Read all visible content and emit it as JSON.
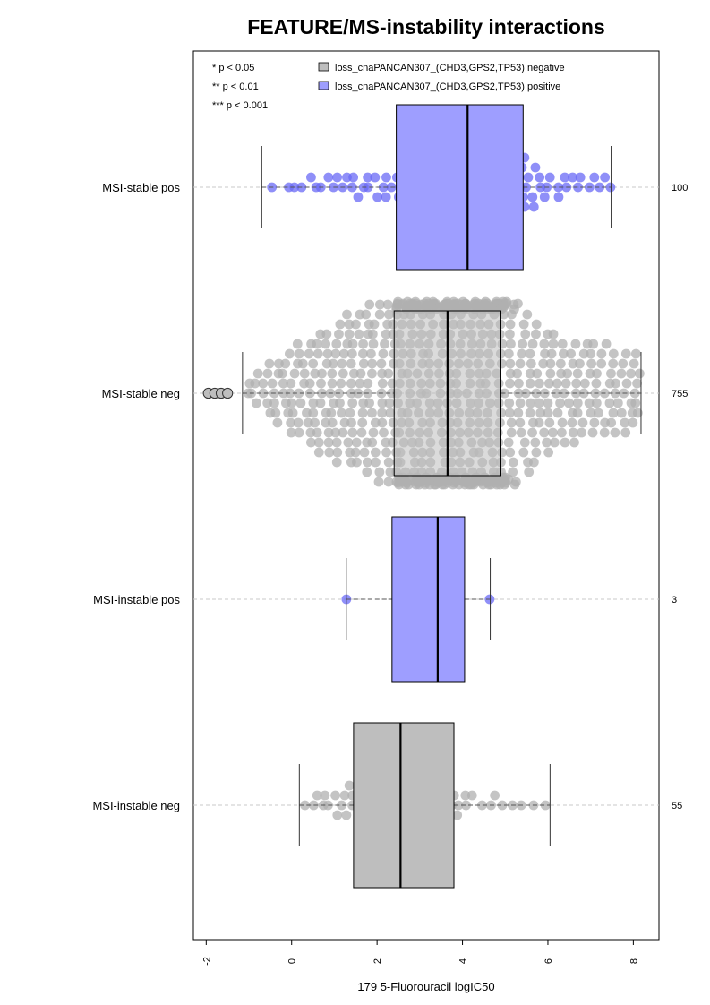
{
  "chart_data": {
    "type": "box",
    "title": "FEATURE/MS-instability interactions",
    "xlabel": "179 5-Fluorouracil logIC50",
    "ylabel": "",
    "xlim": [
      -2.3,
      8.6
    ],
    "x_ticks": [
      -2,
      0,
      2,
      4,
      6,
      8
    ],
    "grid": "horizontal dashed",
    "legend": {
      "position": "top",
      "significance": [
        "* p < 0.05",
        "** p < 0.01",
        "*** p < 0.001"
      ],
      "entries": [
        {
          "label": "loss_cnaPANCAN307_(CHD3,GPS2,TP53) negative",
          "color": "#bebebe"
        },
        {
          "label": "loss_cnaPANCAN307_(CHD3,GPS2,TP53) positive",
          "color": "#9e9eff"
        }
      ]
    },
    "groups": [
      {
        "name": "MSI-stable pos",
        "n": "100",
        "status": "positive",
        "box_color": "#9e9eff",
        "point_color": "#6a6af5",
        "whisker_low": -0.7,
        "q1": 2.45,
        "median": 4.12,
        "q3": 5.42,
        "whisker_high": 7.48,
        "outliers": [],
        "spread": 0.42,
        "point_count": 100
      },
      {
        "name": "MSI-stable neg",
        "n": "755",
        "status": "negative",
        "box_color": "#bebebe",
        "point_color": "#b0b0b0",
        "whisker_low": -1.15,
        "q1": 2.4,
        "median": 3.65,
        "q3": 4.9,
        "whisker_high": 8.18,
        "outliers": [
          -1.95,
          -1.8,
          -1.65,
          -1.5
        ],
        "spread": 0.95,
        "point_count": 755
      },
      {
        "name": "MSI-instable pos",
        "n": "3",
        "status": "positive",
        "box_color": "#9e9eff",
        "point_color": "#6a6af5",
        "whisker_low": 1.28,
        "q1": 2.35,
        "median": 3.42,
        "q3": 4.05,
        "whisker_high": 4.65,
        "outliers": [],
        "spread": 0,
        "point_count": 3
      },
      {
        "name": "MSI-instable neg",
        "n": "55",
        "status": "negative",
        "box_color": "#bebebe",
        "point_color": "#b0b0b0",
        "whisker_low": 0.18,
        "q1": 1.45,
        "median": 2.55,
        "q3": 3.8,
        "whisker_high": 6.05,
        "outliers": [],
        "spread": 0.1,
        "point_count": 55
      }
    ]
  }
}
